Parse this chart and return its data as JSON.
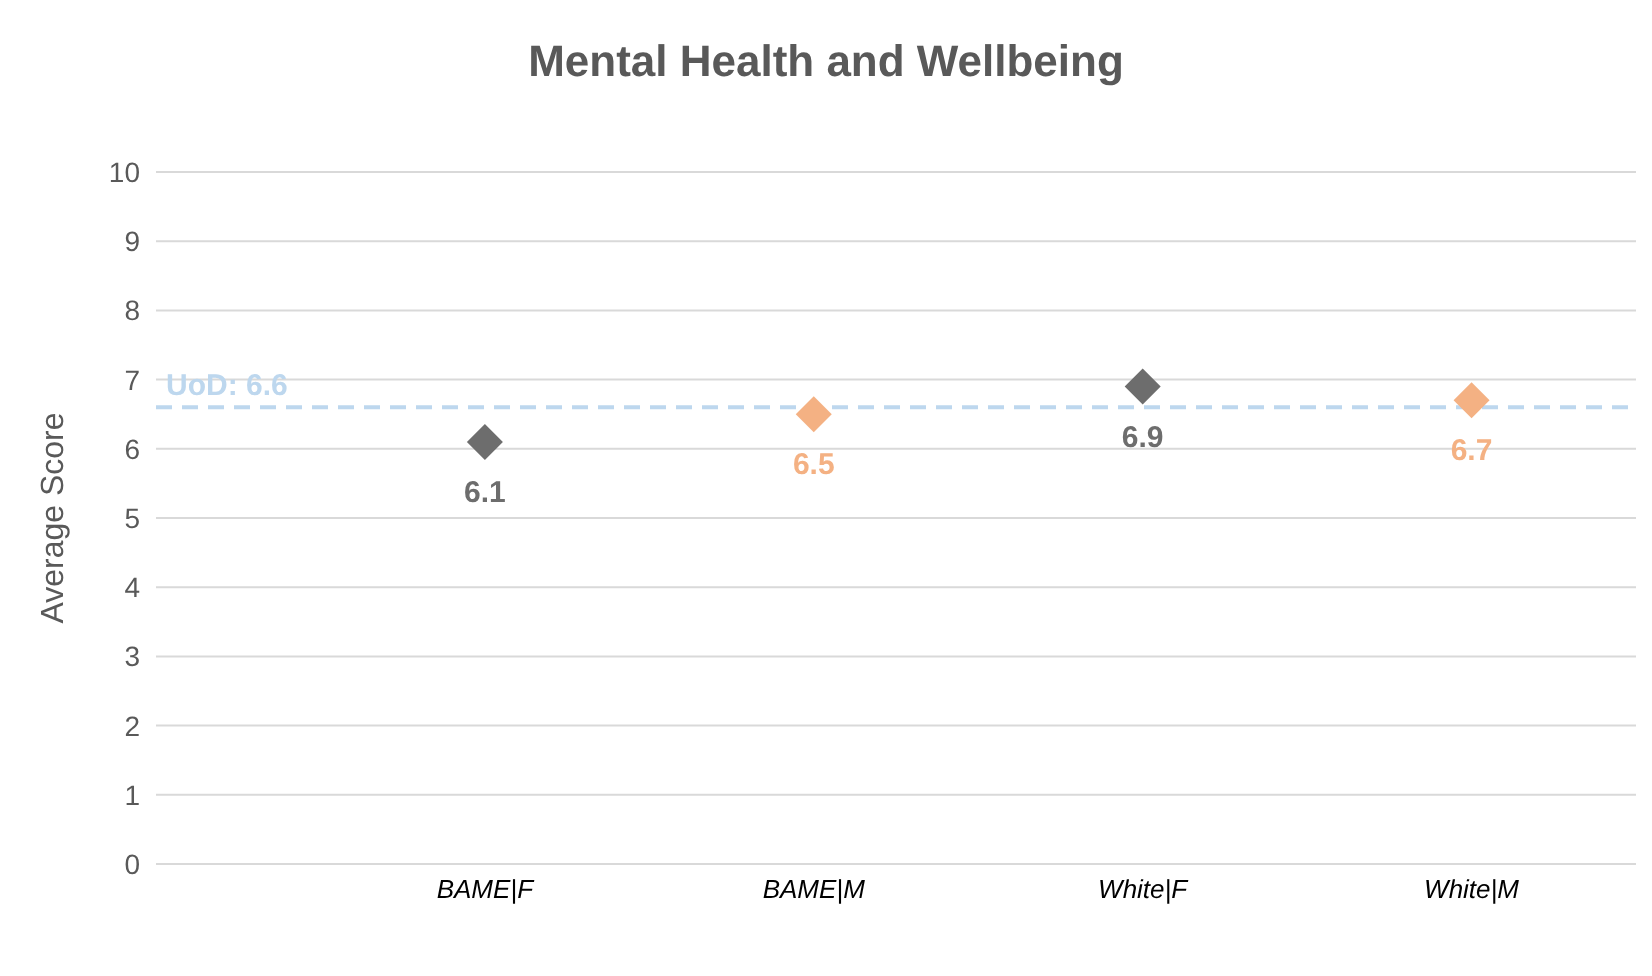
{
  "chart_data": {
    "type": "scatter",
    "title": "Mental Health and Wellbeing",
    "ylabel": "Average Score",
    "categories": [
      null,
      "BAME|F",
      "BAME|M",
      "White|F",
      "White|M"
    ],
    "values": [
      null,
      6.1,
      6.5,
      6.9,
      6.7
    ],
    "colors": [
      null,
      "#6d6d6d",
      "#f4b183",
      "#6d6d6d",
      "#f4b183"
    ],
    "ylim": [
      0,
      10
    ],
    "yticks": [
      0,
      1,
      2,
      3,
      4,
      5,
      6,
      7,
      8,
      9,
      10
    ],
    "grid": "y",
    "marker": "diamond",
    "data_labels": true,
    "ref_lines": [
      {
        "axis": "y",
        "value": 6.6,
        "label": "UoD: 6.6",
        "color": "#bdd7ee",
        "line_style": "dashed"
      }
    ]
  }
}
